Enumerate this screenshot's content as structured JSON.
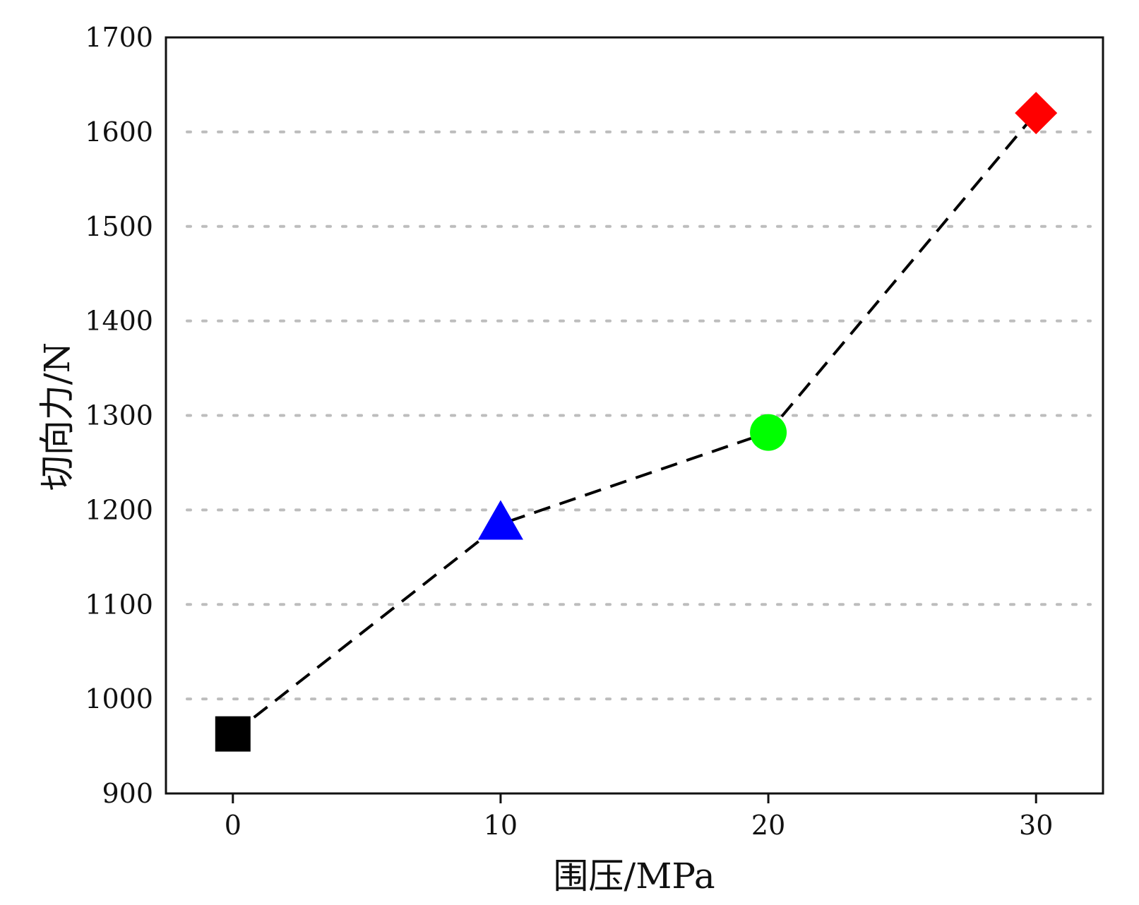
{
  "chart_data": {
    "type": "line",
    "title": "",
    "xlabel": "围压/MPa",
    "ylabel": "切向力/N",
    "x_ticks": [
      0,
      10,
      20,
      30
    ],
    "y_ticks": [
      900,
      1000,
      1100,
      1200,
      1300,
      1400,
      1500,
      1600,
      1700
    ],
    "xlim": [
      -2.5,
      32.5
    ],
    "ylim": [
      900,
      1700
    ],
    "grid": "horizontal-dotted",
    "legend": "none",
    "line_style": "dashed",
    "line_color": "#000000",
    "grid_color": "#bdbdbd",
    "series": [
      {
        "x": [
          0,
          10,
          20,
          30
        ],
        "y": [
          963,
          1185,
          1282,
          1620
        ],
        "markers": [
          "square",
          "triangle",
          "circle",
          "diamond"
        ],
        "colors": [
          "#000000",
          "#0000ff",
          "#00ff00",
          "#ff0000"
        ]
      }
    ]
  }
}
